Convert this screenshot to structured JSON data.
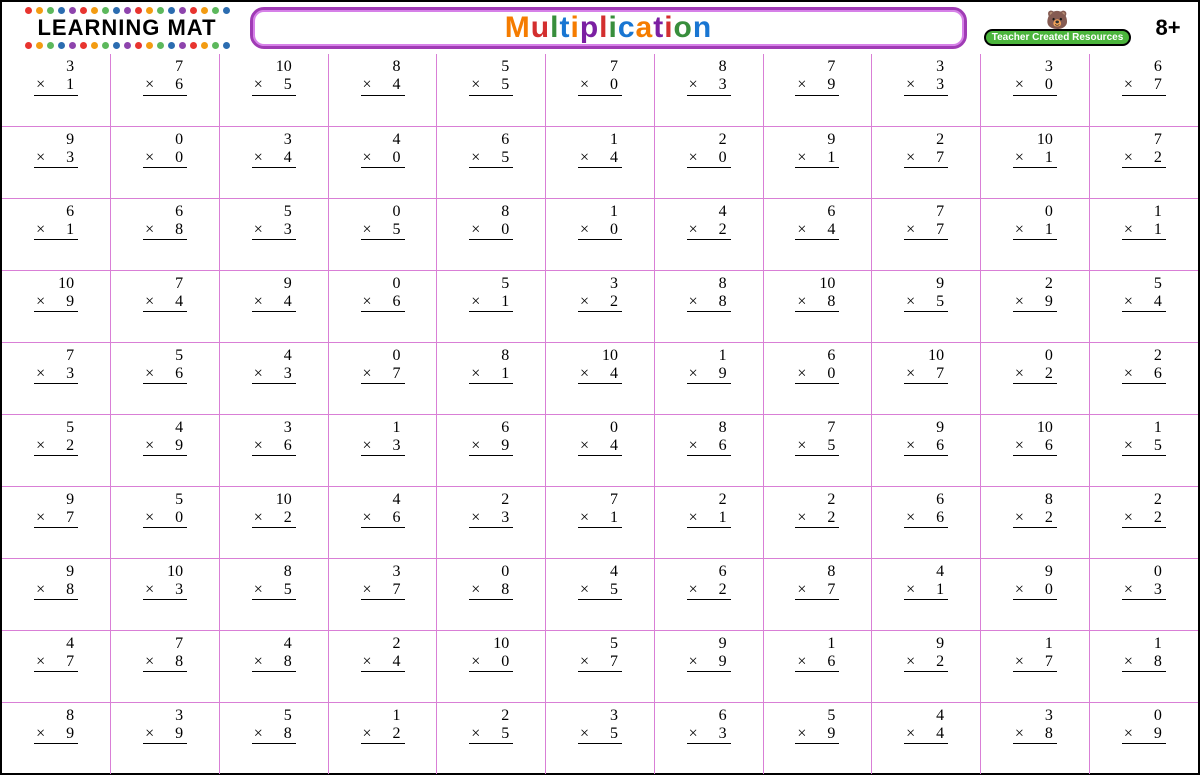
{
  "header": {
    "learning_mat_label": "LEARNING MAT",
    "dot_colors": [
      "#e8342f",
      "#f39c12",
      "#5cb85c",
      "#2b6cb0",
      "#8e44ad",
      "#e8342f",
      "#f39c12",
      "#5cb85c",
      "#2b6cb0",
      "#8e44ad",
      "#e8342f",
      "#f39c12",
      "#5cb85c",
      "#2b6cb0",
      "#8e44ad",
      "#e8342f",
      "#f39c12",
      "#5cb85c",
      "#2b6cb0"
    ],
    "title_letters": [
      {
        "ch": "M",
        "color": "#f57c00"
      },
      {
        "ch": "u",
        "color": "#d32f2f"
      },
      {
        "ch": "l",
        "color": "#388e3c"
      },
      {
        "ch": "t",
        "color": "#1976d2"
      },
      {
        "ch": "i",
        "color": "#f57c00"
      },
      {
        "ch": "p",
        "color": "#7b1fa2"
      },
      {
        "ch": "l",
        "color": "#d32f2f"
      },
      {
        "ch": "i",
        "color": "#388e3c"
      },
      {
        "ch": "c",
        "color": "#1976d2"
      },
      {
        "ch": "a",
        "color": "#f57c00"
      },
      {
        "ch": "t",
        "color": "#7b1fa2"
      },
      {
        "ch": "i",
        "color": "#d32f2f"
      },
      {
        "ch": "o",
        "color": "#388e3c"
      },
      {
        "ch": "n",
        "color": "#1976d2"
      }
    ],
    "publisher_label": "Teacher Created Resources",
    "age_label": "8+"
  },
  "grid": {
    "type": "table",
    "columns": 11,
    "rows": 10,
    "border_color": "#d97fd6",
    "text_color": "#000000",
    "font_family": "handwritten",
    "problems": [
      [
        [
          3,
          1
        ],
        [
          7,
          6
        ],
        [
          10,
          5
        ],
        [
          8,
          4
        ],
        [
          5,
          5
        ],
        [
          7,
          0
        ],
        [
          8,
          3
        ],
        [
          7,
          9
        ],
        [
          3,
          3
        ],
        [
          3,
          0
        ],
        [
          6,
          7
        ]
      ],
      [
        [
          9,
          3
        ],
        [
          0,
          0
        ],
        [
          3,
          4
        ],
        [
          4,
          0
        ],
        [
          6,
          5
        ],
        [
          1,
          4
        ],
        [
          2,
          0
        ],
        [
          9,
          1
        ],
        [
          2,
          7
        ],
        [
          10,
          1
        ],
        [
          7,
          2
        ]
      ],
      [
        [
          6,
          1
        ],
        [
          6,
          8
        ],
        [
          5,
          3
        ],
        [
          0,
          5
        ],
        [
          8,
          0
        ],
        [
          1,
          0
        ],
        [
          4,
          2
        ],
        [
          6,
          4
        ],
        [
          7,
          7
        ],
        [
          0,
          1
        ],
        [
          1,
          1
        ]
      ],
      [
        [
          10,
          9
        ],
        [
          7,
          4
        ],
        [
          9,
          4
        ],
        [
          0,
          6
        ],
        [
          5,
          1
        ],
        [
          3,
          2
        ],
        [
          8,
          8
        ],
        [
          10,
          8
        ],
        [
          9,
          5
        ],
        [
          2,
          9
        ],
        [
          5,
          4
        ]
      ],
      [
        [
          7,
          3
        ],
        [
          5,
          6
        ],
        [
          4,
          3
        ],
        [
          0,
          7
        ],
        [
          8,
          1
        ],
        [
          10,
          4
        ],
        [
          1,
          9
        ],
        [
          6,
          0
        ],
        [
          10,
          7
        ],
        [
          0,
          2
        ],
        [
          2,
          6
        ]
      ],
      [
        [
          5,
          2
        ],
        [
          4,
          9
        ],
        [
          3,
          6
        ],
        [
          1,
          3
        ],
        [
          6,
          9
        ],
        [
          0,
          4
        ],
        [
          8,
          6
        ],
        [
          7,
          5
        ],
        [
          9,
          6
        ],
        [
          10,
          6
        ],
        [
          1,
          5
        ]
      ],
      [
        [
          9,
          7
        ],
        [
          5,
          0
        ],
        [
          10,
          2
        ],
        [
          4,
          6
        ],
        [
          2,
          3
        ],
        [
          7,
          1
        ],
        [
          2,
          1
        ],
        [
          2,
          2
        ],
        [
          6,
          6
        ],
        [
          8,
          2
        ],
        [
          2,
          2
        ]
      ],
      [
        [
          9,
          8
        ],
        [
          10,
          3
        ],
        [
          8,
          5
        ],
        [
          3,
          7
        ],
        [
          0,
          8
        ],
        [
          4,
          5
        ],
        [
          6,
          2
        ],
        [
          8,
          7
        ],
        [
          4,
          1
        ],
        [
          9,
          0
        ],
        [
          0,
          3
        ]
      ],
      [
        [
          4,
          7
        ],
        [
          7,
          8
        ],
        [
          4,
          8
        ],
        [
          2,
          4
        ],
        [
          10,
          0
        ],
        [
          5,
          7
        ],
        [
          9,
          9
        ],
        [
          1,
          6
        ],
        [
          9,
          2
        ],
        [
          1,
          7
        ],
        [
          1,
          8
        ]
      ],
      [
        [
          8,
          9
        ],
        [
          3,
          9
        ],
        [
          5,
          8
        ],
        [
          1,
          2
        ],
        [
          2,
          5
        ],
        [
          3,
          5
        ],
        [
          6,
          3
        ],
        [
          5,
          9
        ],
        [
          4,
          4
        ],
        [
          3,
          8
        ],
        [
          0,
          9
        ]
      ]
    ]
  }
}
